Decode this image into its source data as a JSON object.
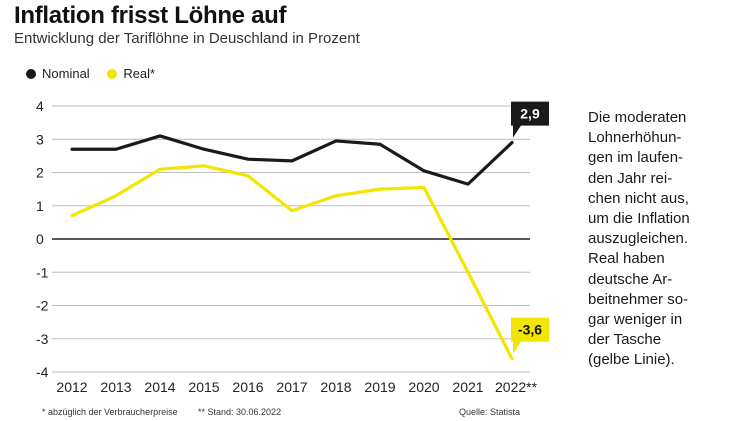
{
  "title": "Inflation frisst Löhne auf",
  "subtitle": "Entwicklung der Tariflöhne in Deuschland in Prozent",
  "legend": [
    {
      "label": "Nominal",
      "color": "#1a1a1a"
    },
    {
      "label": "Real*",
      "color": "#f2e600"
    }
  ],
  "sidebar_text": "Die moderaten\nLohnerhöhun-\ngen im laufen-\nden Jahr rei-\nchen nicht aus,\num die Inflation\nauszugleichen.\nReal haben\ndeutsche Ar-\nbeitnehmer so-\ngar weniger in\nder Tasche\n(gelbe Linie).",
  "footnotes": {
    "left": "* abzüglich der Verbraucherpreise",
    "middle": "** Stand: 30.06.2022",
    "right": "Quelle: Statista"
  },
  "chart_data": {
    "type": "line",
    "title": "Inflation frisst Löhne auf",
    "subtitle": "Entwicklung der Tariflöhne in Deuschland in Prozent",
    "categories": [
      "2012",
      "2013",
      "2014",
      "2015",
      "2016",
      "2017",
      "2018",
      "2019",
      "2020",
      "2021",
      "2022**"
    ],
    "series": [
      {
        "name": "Nominal",
        "color": "#1a1a1a",
        "values": [
          2.7,
          2.7,
          3.1,
          2.7,
          2.4,
          2.35,
          2.95,
          2.85,
          2.05,
          1.65,
          2.9
        ]
      },
      {
        "name": "Real*",
        "color": "#f2e600",
        "values": [
          0.7,
          1.3,
          2.1,
          2.2,
          1.9,
          0.85,
          1.3,
          1.5,
          1.55,
          -1.0,
          -3.6
        ]
      }
    ],
    "ylim": [
      -4,
      4
    ],
    "yticks": [
      4,
      3,
      2,
      1,
      0,
      -1,
      -2,
      -3,
      -4
    ],
    "ytick_labels": [
      "4",
      "3",
      "2",
      "1",
      "0",
      "-1",
      "-2",
      "-3",
      "-4"
    ],
    "grid": true,
    "legend_position": "top-left",
    "annotations": [
      {
        "series": "Nominal",
        "text": "2,9",
        "background": "#1a1a1a",
        "text_color": "#ffffff"
      },
      {
        "series": "Real*",
        "text": "-3,6",
        "background": "#f2e600",
        "text_color": "#111111"
      }
    ]
  }
}
